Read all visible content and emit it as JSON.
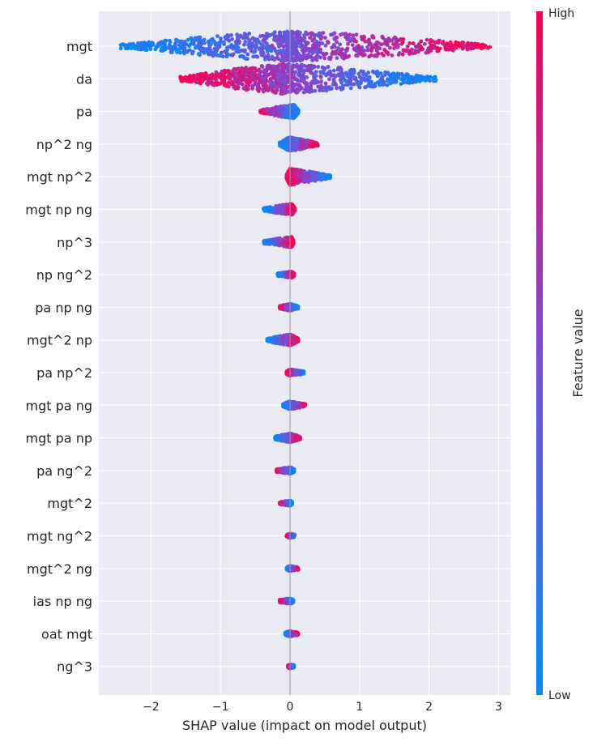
{
  "chart_data": {
    "type": "scatter",
    "subtype": "shap-beeswarm-summary",
    "xlabel": "SHAP value (impact on model output)",
    "xlim": [
      -2.8,
      3.15
    ],
    "x_ticks": [
      -2,
      -1,
      0,
      1,
      2,
      3
    ],
    "grid": true,
    "colorbar": {
      "label": "Feature value",
      "high_label": "High",
      "low_label": "Low",
      "low_color": "#008bfb",
      "high_color": "#ff0052"
    },
    "features": [
      {
        "name": "mgt",
        "min": -2.45,
        "max": 2.9,
        "corr": 1,
        "peak": 0.45,
        "center": 0.0
      },
      {
        "name": "da",
        "min": -1.6,
        "max": 2.1,
        "corr": -1,
        "peak": 0.35,
        "center": -0.1
      },
      {
        "name": "pa",
        "min": -0.43,
        "max": 0.12,
        "corr": -1,
        "peak": 0.4,
        "center": 0.05
      },
      {
        "name": "np^2 ng",
        "min": -0.15,
        "max": 0.4,
        "corr": 1,
        "peak": 0.35,
        "center": 0.0
      },
      {
        "name": "mgt np^2",
        "min": -0.05,
        "max": 0.58,
        "corr": -1,
        "peak": 0.4,
        "center": 0.0
      },
      {
        "name": "mgt np ng",
        "min": -0.38,
        "max": 0.07,
        "corr": 1,
        "peak": 0.35,
        "center": 0.02
      },
      {
        "name": "np^3",
        "min": -0.38,
        "max": 0.05,
        "corr": 1,
        "peak": 0.4,
        "center": 0.02
      },
      {
        "name": "np ng^2",
        "min": -0.18,
        "max": 0.06,
        "corr": 1,
        "peak": 0.35,
        "center": 0.02
      },
      {
        "name": "pa np ng",
        "min": -0.15,
        "max": 0.12,
        "corr": -1,
        "peak": 0.35,
        "center": 0.0
      },
      {
        "name": "mgt^2 np",
        "min": -0.33,
        "max": 0.12,
        "corr": 1,
        "peak": 0.35,
        "center": 0.0
      },
      {
        "name": "pa np^2",
        "min": -0.05,
        "max": 0.2,
        "corr": -1,
        "peak": 0.35,
        "center": 0.0
      },
      {
        "name": "mgt pa ng",
        "min": -0.1,
        "max": 0.22,
        "corr": 1,
        "peak": 0.35,
        "center": 0.0
      },
      {
        "name": "mgt pa np",
        "min": -0.22,
        "max": 0.15,
        "corr": 1,
        "peak": 0.35,
        "center": 0.0
      },
      {
        "name": "pa ng^2",
        "min": -0.2,
        "max": 0.06,
        "corr": -1,
        "peak": 0.35,
        "center": 0.0
      },
      {
        "name": "mgt^2",
        "min": -0.15,
        "max": 0.03,
        "corr": -1,
        "peak": 0.35,
        "center": 0.0
      },
      {
        "name": "mgt ng^2",
        "min": -0.05,
        "max": 0.07,
        "corr": -1,
        "peak": 0.35,
        "center": 0.0
      },
      {
        "name": "mgt^2 ng",
        "min": -0.05,
        "max": 0.12,
        "corr": 1,
        "peak": 0.35,
        "center": 0.0
      },
      {
        "name": "ias np ng",
        "min": -0.15,
        "max": 0.05,
        "corr": -1,
        "peak": 0.35,
        "center": 0.0
      },
      {
        "name": "oat mgt",
        "min": -0.07,
        "max": 0.12,
        "corr": 1,
        "peak": 0.35,
        "center": 0.0
      },
      {
        "name": "ng^3",
        "min": -0.03,
        "max": 0.06,
        "corr": -1,
        "peak": 0.3,
        "center": 0.0
      }
    ]
  }
}
